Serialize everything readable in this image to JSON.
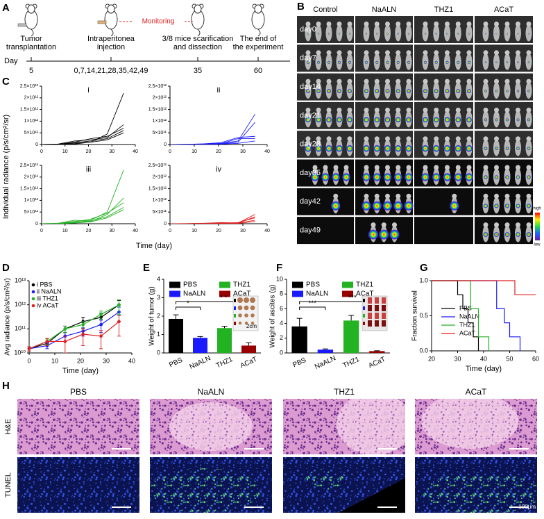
{
  "panel_labels": [
    "A",
    "B",
    "C",
    "D",
    "E",
    "F",
    "G",
    "H"
  ],
  "timeline": {
    "axis_label": "Day",
    "monitoring": "Monitoring",
    "events": [
      {
        "lines": [
          "Tumor",
          "transplantation"
        ],
        "day": "5"
      },
      {
        "lines": [
          "Intraperitonea",
          "injection"
        ],
        "day": "0,7,14,21,28,35,42,49"
      },
      {
        "lines": [
          "3/8 mice scarification",
          "and dissection"
        ],
        "day": "35"
      },
      {
        "lines": [
          "The end of",
          "the experiment"
        ],
        "day": "60"
      }
    ]
  },
  "imaging": {
    "columns": [
      "Control",
      "NaALN",
      "THZ1",
      "ACaT"
    ],
    "rows": [
      "day0",
      "day7",
      "day14",
      "day21",
      "day28",
      "day35",
      "day42",
      "day49"
    ],
    "colorbar": {
      "high": "high",
      "low": "low"
    }
  },
  "histology": {
    "columns": [
      "PBS",
      "NaALN",
      "THZ1",
      "ACaT"
    ],
    "rows": [
      "H&E",
      "TUNEL"
    ],
    "scale_bar": "100μm"
  },
  "chart_data": [
    {
      "type": "line",
      "annotation": "i",
      "ylabel": "Individual radiance (p/s/cm²/sr)",
      "xlabel": "Time (day)",
      "x": [
        0,
        7,
        14,
        21,
        28,
        35
      ],
      "xlim": [
        0,
        40
      ],
      "xticks": [
        0,
        10,
        20,
        30,
        40
      ],
      "ylim": [
        0,
        2500000000000.0
      ],
      "yticks": [
        0,
        {
          "value": 500000000000.0,
          "label": "5×10¹¹"
        },
        {
          "value": 1000000000000.0,
          "label": "1×10¹²"
        },
        {
          "value": 1500000000000.0,
          "label": "1.5×10¹²"
        },
        {
          "value": 2000000000000.0,
          "label": "2×10¹²"
        },
        {
          "value": 2500000000000.0,
          "label": "2.5×10¹²"
        }
      ],
      "series": [
        {
          "color": "#000000",
          "values": [
            0,
            10000000000.0,
            50000000000.0,
            100000000000.0,
            450000000000.0,
            2200000000000.0
          ]
        },
        {
          "color": "#000000",
          "values": [
            0,
            20000000000.0,
            150000000000.0,
            200000000000.0,
            300000000000.0,
            850000000000.0
          ]
        },
        {
          "color": "#000000",
          "values": [
            0,
            5000000000.0,
            100000000000.0,
            250000000000.0,
            350000000000.0,
            700000000000.0
          ]
        },
        {
          "color": "#000000",
          "values": [
            0,
            10000000000.0,
            80000000000.0,
            150000000000.0,
            250000000000.0,
            600000000000.0
          ]
        },
        {
          "color": "#000000",
          "values": [
            0,
            5000000000.0,
            20000000000.0,
            100000000000.0,
            200000000000.0,
            500000000000.0
          ]
        }
      ]
    },
    {
      "type": "line",
      "annotation": "ii",
      "x": [
        0,
        7,
        14,
        21,
        28,
        35
      ],
      "xlim": [
        0,
        40
      ],
      "xticks": [
        0,
        10,
        20,
        30,
        40
      ],
      "ylim": [
        0,
        2500000000000.0
      ],
      "yticks": [
        0,
        {
          "value": 500000000000.0,
          "label": "5×10¹¹"
        },
        {
          "value": 1000000000000.0,
          "label": "1×10¹²"
        },
        {
          "value": 1500000000000.0,
          "label": "1.5×10¹²"
        },
        {
          "value": 2000000000000.0,
          "label": "2×10¹²"
        },
        {
          "value": 2500000000000.0,
          "label": "2.5×10¹²"
        }
      ],
      "series": [
        {
          "color": "#1a1aff",
          "values": [
            0,
            5000000000.0,
            20000000000.0,
            50000000000.0,
            150000000000.0,
            1300000000000.0
          ]
        },
        {
          "color": "#1a1aff",
          "values": [
            0,
            5000000000.0,
            10000000000.0,
            30000000000.0,
            100000000000.0,
            950000000000.0
          ]
        },
        {
          "color": "#1a1aff",
          "values": [
            0,
            10000000000.0,
            30000000000.0,
            80000000000.0,
            300000000000.0,
            350000000000.0
          ]
        },
        {
          "color": "#1a1aff",
          "values": [
            0,
            5000000000.0,
            20000000000.0,
            40000000000.0,
            250000000000.0,
            250000000000.0
          ]
        },
        {
          "color": "#1a1aff",
          "values": [
            0,
            5000000000.0,
            10000000000.0,
            20000000000.0,
            50000000000.0,
            150000000000.0
          ]
        }
      ]
    },
    {
      "type": "line",
      "annotation": "iii",
      "x": [
        0,
        7,
        14,
        21,
        28,
        35
      ],
      "xlim": [
        0,
        40
      ],
      "xticks": [
        0,
        10,
        20,
        30,
        40
      ],
      "ylim": [
        0,
        2500000000000.0
      ],
      "yticks": [
        0,
        {
          "value": 500000000000.0,
          "label": "5×10¹¹"
        },
        {
          "value": 1000000000000.0,
          "label": "1×10¹²"
        },
        {
          "value": 1500000000000.0,
          "label": "1.5×10¹²"
        },
        {
          "value": 2000000000000.0,
          "label": "2×10¹²"
        },
        {
          "value": 2500000000000.0,
          "label": "2.5×10¹²"
        }
      ],
      "series": [
        {
          "color": "#22b222",
          "values": [
            0,
            10000000000.0,
            100000000000.0,
            150000000000.0,
            500000000000.0,
            2300000000000.0
          ]
        },
        {
          "color": "#22b222",
          "values": [
            0,
            20000000000.0,
            150000000000.0,
            100000000000.0,
            400000000000.0,
            1100000000000.0
          ]
        },
        {
          "color": "#22b222",
          "values": [
            0,
            10000000000.0,
            80000000000.0,
            200000000000.0,
            450000000000.0,
            900000000000.0
          ]
        },
        {
          "color": "#22b222",
          "values": [
            0,
            5000000000.0,
            50000000000.0,
            120000000000.0,
            300000000000.0,
            700000000000.0
          ]
        },
        {
          "color": "#22b222",
          "values": [
            0,
            5000000000.0,
            30000000000.0,
            80000000000.0,
            250000000000.0,
            600000000000.0
          ]
        }
      ]
    },
    {
      "type": "line",
      "annotation": "iv",
      "x": [
        0,
        7,
        14,
        21,
        28,
        35
      ],
      "xlim": [
        0,
        40
      ],
      "xticks": [
        0,
        10,
        20,
        30,
        40
      ],
      "ylim": [
        0,
        2500000000000.0
      ],
      "yticks": [
        0,
        {
          "value": 500000000000.0,
          "label": "5×10¹¹"
        },
        {
          "value": 1000000000000.0,
          "label": "1×10¹²"
        },
        {
          "value": 1500000000000.0,
          "label": "1.5×10¹²"
        },
        {
          "value": 2000000000000.0,
          "label": "2×10¹²"
        },
        {
          "value": 2500000000000.0,
          "label": "2.5×10¹²"
        }
      ],
      "series": [
        {
          "color": "#e02020",
          "values": [
            0,
            5000000000.0,
            20000000000.0,
            50000000000.0,
            30000000000.0,
            400000000000.0
          ]
        },
        {
          "color": "#e02020",
          "values": [
            0,
            5000000000.0,
            10000000000.0,
            30000000000.0,
            20000000000.0,
            300000000000.0
          ]
        },
        {
          "color": "#e02020",
          "values": [
            0,
            2000000000.0,
            10000000000.0,
            20000000000.0,
            50000000000.0,
            250000000000.0
          ]
        },
        {
          "color": "#e02020",
          "values": [
            0,
            2000000000.0,
            5000000000.0,
            10000000000.0,
            20000000000.0,
            150000000000.0
          ]
        },
        {
          "color": "#e02020",
          "values": [
            0,
            2000000000.0,
            5000000000.0,
            10000000000.0,
            10000000000.0,
            100000000000.0
          ]
        }
      ]
    },
    {
      "type": "line",
      "log_y": true,
      "markers": true,
      "legend": "upper left",
      "ylabel": "Avg radiance (p/s/cm²/sr)",
      "xlabel": "Time (day)",
      "x": [
        0,
        7,
        14,
        21,
        28,
        35
      ],
      "xlim": [
        0,
        40
      ],
      "xticks": [
        0,
        10,
        20,
        30,
        40
      ],
      "ylim": [
        10000000000.0,
        10000000000000.0
      ],
      "yticks": [
        {
          "value": 10000000000.0,
          "label": "10¹⁰"
        },
        {
          "value": 100000000000.0,
          "label": "10¹¹"
        },
        {
          "value": 1000000000000.0,
          "label": "10¹²"
        },
        {
          "value": 10000000000000.0,
          "label": "10¹³"
        }
      ],
      "series": [
        {
          "name": "i PBS",
          "color": "#000000",
          "values": [
            15000000000.0,
            25000000000.0,
            100000000000.0,
            200000000000.0,
            300000000000.0,
            1000000000000.0
          ],
          "errors": [
            3000000000.0,
            5000000000.0,
            30000000000.0,
            100000000000.0,
            150000000000.0,
            500000000000.0
          ]
        },
        {
          "name": "ii NaALN",
          "color": "#1a1aff",
          "values": [
            15000000000.0,
            20000000000.0,
            50000000000.0,
            80000000000.0,
            150000000000.0,
            500000000000.0
          ],
          "errors": [
            3000000000.0,
            5000000000.0,
            20000000000.0,
            30000000000.0,
            80000000000.0,
            300000000000.0
          ]
        },
        {
          "name": "iii THZ1",
          "color": "#22b222",
          "values": [
            15000000000.0,
            30000000000.0,
            100000000000.0,
            150000000000.0,
            400000000000.0,
            1000000000000.0
          ],
          "errors": [
            3000000000.0,
            8000000000.0,
            30000000000.0,
            50000000000.0,
            150000000000.0,
            600000000000.0
          ]
        },
        {
          "name": "iv ACaT",
          "color": "#e02020",
          "values": [
            15000000000.0,
            30000000000.0,
            30000000000.0,
            60000000000.0,
            50000000000.0,
            200000000000.0
          ],
          "errors": [
            3000000000.0,
            10000000000.0,
            20000000000.0,
            40000000000.0,
            35000000000.0,
            150000000000.0
          ]
        }
      ]
    },
    {
      "type": "bar",
      "ylabel": "Weight of tumor (g)",
      "categories": [
        "PBS",
        "NaALN",
        "THZ1",
        "ACaT"
      ],
      "values": [
        1.85,
        0.82,
        1.35,
        0.4
      ],
      "errors": [
        0.22,
        0.07,
        0.1,
        0.15
      ],
      "colors": [
        "#000000",
        "#1a1aff",
        "#22b222",
        "#990000"
      ],
      "ylim": [
        0,
        4
      ],
      "yticks": [
        0,
        1,
        2,
        3,
        4
      ],
      "annotations": [
        "*",
        "* *"
      ],
      "inset_label": "2cm"
    },
    {
      "type": "bar",
      "ylabel": "Weight of ascites (g)",
      "categories": [
        "PBS",
        "NaALN",
        "THZ1",
        "ACaT"
      ],
      "values": [
        3.6,
        0.45,
        4.4,
        0.25
      ],
      "errors": [
        1.1,
        0.1,
        0.7,
        0.05
      ],
      "colors": [
        "#000000",
        "#1a1aff",
        "#22b222",
        "#990000"
      ],
      "ylim": [
        0,
        10
      ],
      "yticks": [
        0,
        2,
        4,
        6,
        8,
        10
      ],
      "annotations": [
        "***",
        "***"
      ]
    },
    {
      "type": "line",
      "legend": "center",
      "ylabel": "Fraction survival",
      "xlabel": "Time (day)",
      "xlim": [
        20,
        60
      ],
      "xticks": [
        20,
        30,
        40,
        50,
        60
      ],
      "ylim": [
        0,
        1
      ],
      "yticks": [
        {
          "value": 0,
          "label": "0.0"
        },
        0.5,
        {
          "value": 1,
          "label": "1.0"
        }
      ],
      "series": [
        {
          "name": "PBS",
          "color": "#000000",
          "x": [
            20,
            30,
            30,
            32,
            32,
            34,
            34,
            36,
            36,
            38,
            38
          ],
          "values": [
            1,
            1,
            0.8,
            0.8,
            0.6,
            0.6,
            0.4,
            0.4,
            0.2,
            0.2,
            0
          ]
        },
        {
          "name": "NaALN",
          "color": "#1a1aff",
          "x": [
            20,
            45,
            45,
            48,
            48,
            50,
            50,
            54,
            54
          ],
          "values": [
            1,
            1,
            0.6,
            0.6,
            0.4,
            0.4,
            0.2,
            0.2,
            0
          ]
        },
        {
          "name": "THZ1",
          "color": "#22b222",
          "x": [
            20,
            35,
            35,
            38,
            38,
            42,
            42
          ],
          "values": [
            1,
            1,
            0.6,
            0.6,
            0.2,
            0.2,
            0
          ]
        },
        {
          "name": "ACaT",
          "color": "#e02020",
          "x": [
            20,
            52,
            52,
            60
          ],
          "values": [
            1,
            1,
            0.8,
            0.8
          ]
        }
      ]
    }
  ]
}
